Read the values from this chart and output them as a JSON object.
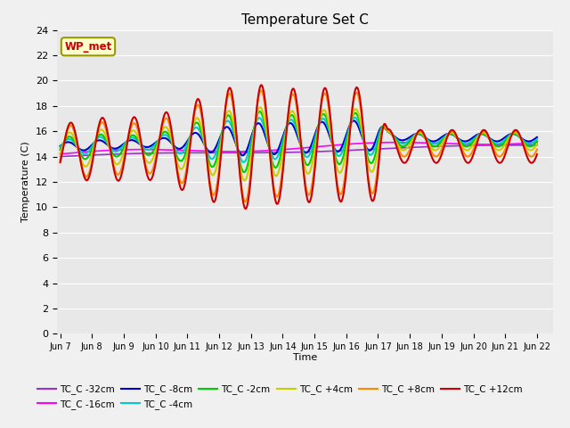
{
  "title": "Temperature Set C",
  "xlabel": "Time",
  "ylabel": "Temperature (C)",
  "ylim": [
    0,
    24
  ],
  "yticks": [
    0,
    2,
    4,
    6,
    8,
    10,
    12,
    14,
    16,
    18,
    20,
    22,
    24
  ],
  "x_tick_labels": [
    "Jun 7",
    "Jun 8",
    "Jun 9",
    "Jun 10",
    "Jun 11",
    "Jun 12",
    "Jun 13",
    "Jun 14",
    "Jun 15",
    "Jun 16",
    "Jun 17",
    "Jun 18",
    "Jun 19",
    "Jun 20",
    "Jun 21",
    "Jun 22"
  ],
  "x_tick_positions": [
    0,
    1,
    2,
    3,
    4,
    5,
    6,
    7,
    8,
    9,
    10,
    11,
    12,
    13,
    14,
    15
  ],
  "legend_label": "WP_met",
  "series_colors": {
    "TC_C -32cm": "#9933CC",
    "TC_C -16cm": "#FF00FF",
    "TC_C -8cm": "#0000CC",
    "TC_C -4cm": "#00CCCC",
    "TC_C -2cm": "#00CC00",
    "TC_C +4cm": "#CCCC00",
    "TC_C +8cm": "#FF8800",
    "TC_C +12cm": "#CC0000"
  },
  "background_color": "#E8E8E8",
  "fig_background": "#F0F0F0",
  "grid_color": "#FFFFFF"
}
